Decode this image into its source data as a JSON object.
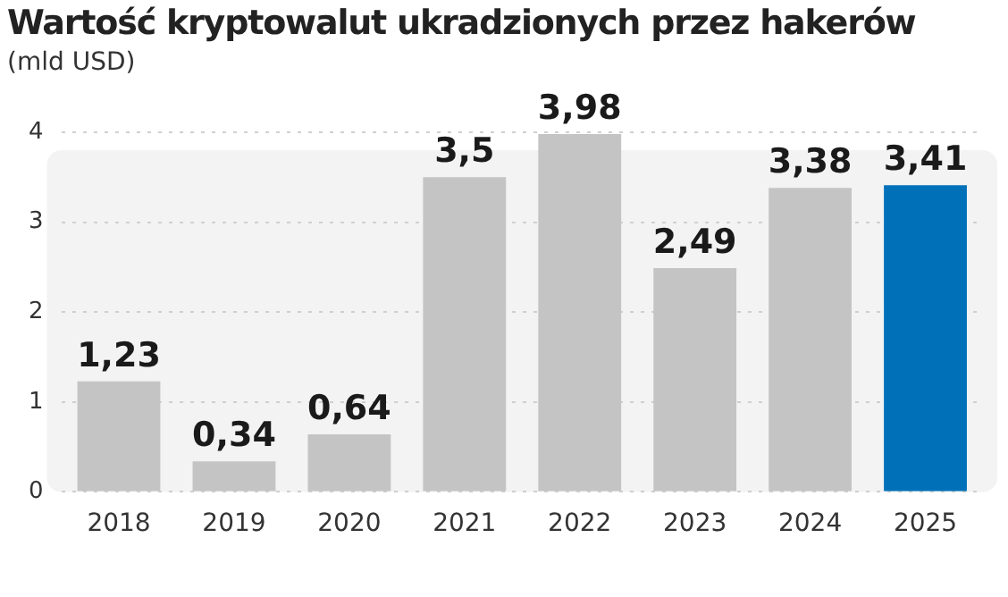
{
  "chart_data": {
    "type": "bar",
    "title": "Wartość kryptowalut ukradzionych przez hakerów",
    "subtitle": "(mld USD)",
    "categories": [
      "2018",
      "2019",
      "2020",
      "2021",
      "2022",
      "2023",
      "2024",
      "2025"
    ],
    "values": [
      1.23,
      0.34,
      0.64,
      3.5,
      3.98,
      2.49,
      3.38,
      3.41
    ],
    "colors": [
      "#c4c4c4",
      "#c4c4c4",
      "#c4c4c4",
      "#c4c4c4",
      "#c4c4c4",
      "#c4c4c4",
      "#c4c4c4",
      "#0071b9"
    ],
    "value_labels": [
      "1,23",
      "0,34",
      "0,64",
      "3,5",
      "3,98",
      "2,49",
      "3,38",
      "3,41"
    ],
    "ylim": [
      0,
      4
    ],
    "yticks": [
      0,
      1,
      2,
      3,
      4
    ],
    "grid": "y"
  }
}
